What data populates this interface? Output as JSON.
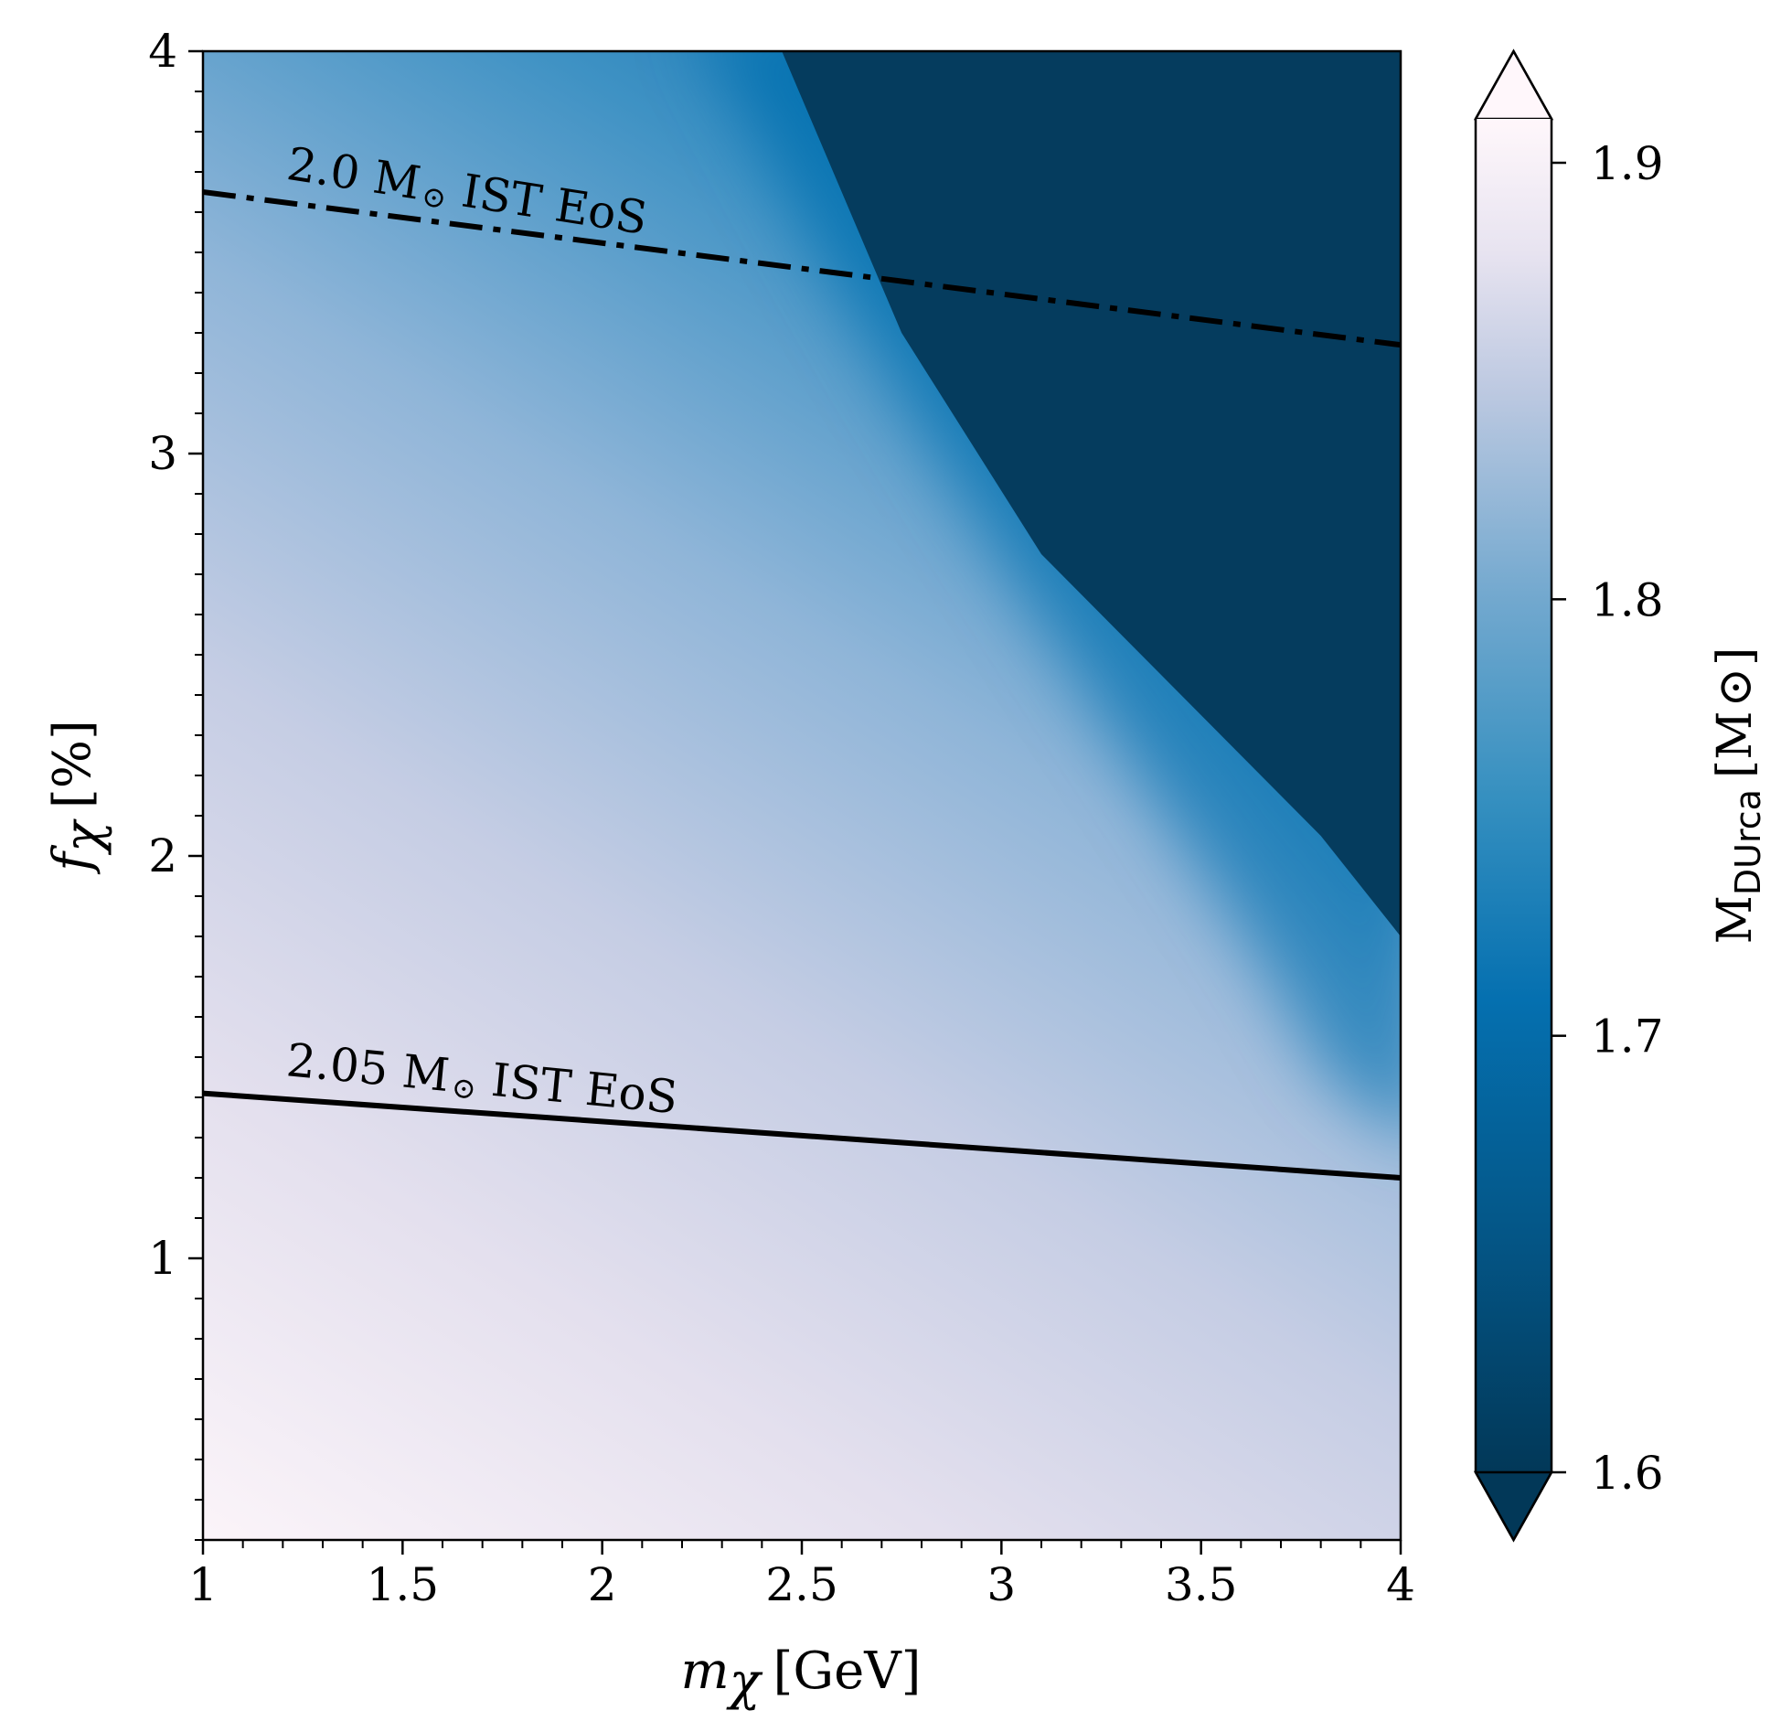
{
  "colors": {
    "dark": "#023858",
    "mid": "#0570b0",
    "light_blue": "#74a9cf",
    "pale": "#d0d1e6",
    "near_white": "#fff7fb"
  },
  "chart_data": {
    "type": "heatmap",
    "xlabel": {
      "symbol": "m",
      "sub": "χ",
      "unit": "[GeV]"
    },
    "ylabel": {
      "symbol": "f",
      "sub": "χ",
      "unit": "[%]"
    },
    "xlim": [
      1,
      4
    ],
    "ylim": [
      0.3,
      4
    ],
    "x_ticks": [
      "1",
      "1.5",
      "2",
      "2.5",
      "3",
      "3.5",
      "4"
    ],
    "y_ticks": [
      "1",
      "2",
      "3",
      "4"
    ],
    "colorbar": {
      "label_main": "M",
      "label_sub": "DUrca",
      "label_unit": "[M",
      "label_close": "]",
      "range": [
        1.6,
        1.9
      ],
      "ticks": [
        "1.6",
        "1.7",
        "1.8",
        "1.9"
      ],
      "extend": "both",
      "colormap": "PuBu_r"
    },
    "contours": [
      {
        "label_value": "2.0 M",
        "label_suffix": "IST EoS",
        "style": "dashdot",
        "points": [
          [
            1.0,
            3.65
          ],
          [
            4.0,
            3.27
          ]
        ]
      },
      {
        "label_value": "2.05 M",
        "label_suffix": "IST EoS",
        "style": "solid",
        "points": [
          [
            1.0,
            1.41
          ],
          [
            4.0,
            1.2
          ]
        ]
      }
    ],
    "field_description_values": {
      "dark_saturation_boundary": [
        [
          2.45,
          4.0
        ],
        [
          2.75,
          3.3
        ],
        [
          3.1,
          2.75
        ],
        [
          3.5,
          2.35
        ],
        [
          3.8,
          2.05
        ],
        [
          4.0,
          1.8
        ]
      ]
    }
  }
}
